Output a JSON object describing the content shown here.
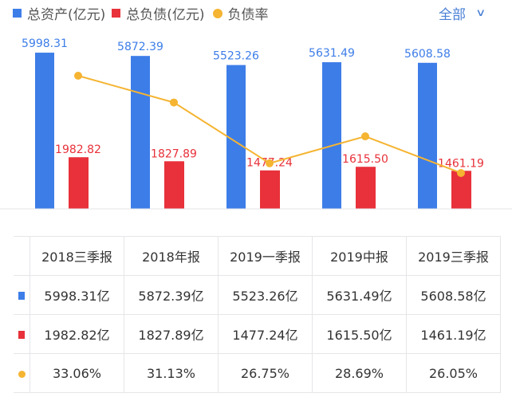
{
  "legend": {
    "assets": "总资产(亿元)",
    "liabilities": "总负债(亿元)",
    "ratio": "负债率"
  },
  "filter": {
    "label": "全部",
    "icon": "chevron-down-icon"
  },
  "colors": {
    "assets": "#3d7de8",
    "liabilities": "#e8313a",
    "ratio": "#f5b431"
  },
  "chart_data": {
    "type": "bar",
    "categories": [
      "2018三季报",
      "2018年报",
      "2019一季报",
      "2019中报",
      "2019三季报"
    ],
    "series": [
      {
        "name": "总资产(亿元)",
        "type": "bar",
        "values": [
          5998.31,
          5872.39,
          5523.26,
          5631.49,
          5608.58
        ],
        "labels": [
          "5998.31",
          "5872.39",
          "5523.26",
          "5631.49",
          "5608.58"
        ]
      },
      {
        "name": "总负债(亿元)",
        "type": "bar",
        "values": [
          1982.82,
          1827.89,
          1477.24,
          1615.5,
          1461.19
        ],
        "labels": [
          "1982.82",
          "1827.89",
          "1477.24",
          "1615.50",
          "1461.19"
        ]
      },
      {
        "name": "负债率",
        "type": "line",
        "values": [
          33.06,
          31.13,
          26.75,
          28.69,
          26.05
        ]
      }
    ],
    "grid": false,
    "legend": "top-left"
  },
  "table": {
    "headers": [
      "2018三季报",
      "2018年报",
      "2019一季报",
      "2019中报",
      "2019三季报"
    ],
    "rows": [
      [
        "5998.31亿",
        "5872.39亿",
        "5523.26亿",
        "5631.49亿",
        "5608.58亿"
      ],
      [
        "1982.82亿",
        "1827.89亿",
        "1477.24亿",
        "1615.50亿",
        "1461.19亿"
      ],
      [
        "33.06%",
        "31.13%",
        "26.75%",
        "28.69%",
        "26.05%"
      ]
    ]
  }
}
